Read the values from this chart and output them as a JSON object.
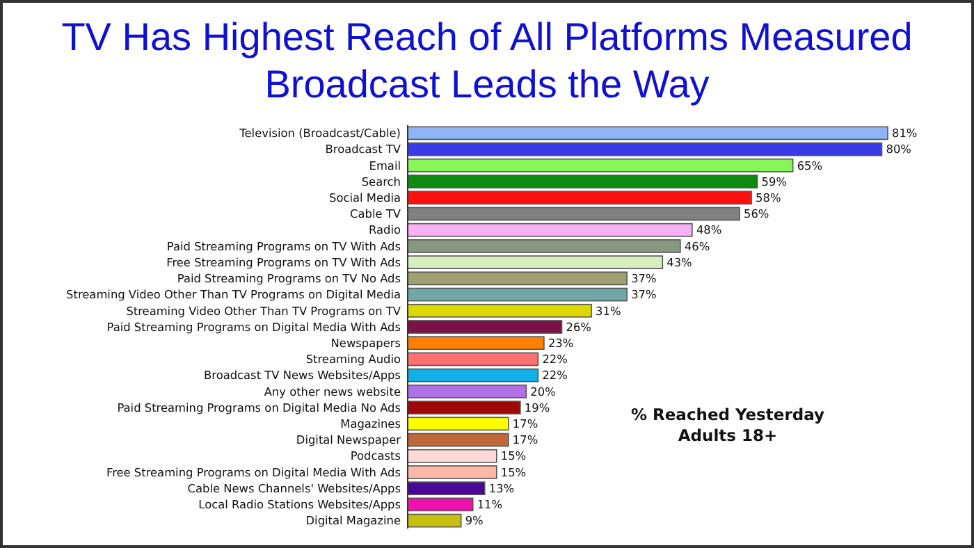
{
  "chart_data": {
    "type": "bar",
    "orientation": "horizontal",
    "title": "TV Has Highest Reach of All Platforms Measured\nBroadcast Leads the Way",
    "categories": [
      "Television (Broadcast/Cable)",
      "Broadcast TV",
      "Email",
      "Search",
      "Social Media",
      "Cable TV",
      "Radio",
      "Paid Streaming Programs on TV With Ads",
      "Free Streaming Programs on TV With Ads",
      "Paid Streaming Programs on TV No Ads",
      "Streaming Video Other Than TV Programs on Digital Media",
      "Streaming Video Other Than TV Programs on TV",
      "Paid Streaming Programs on Digital Media With Ads",
      "Newspapers",
      "Streaming Audio",
      "Broadcast TV News Websites/Apps",
      "Any other news website",
      "Paid Streaming Programs on Digital Media No Ads",
      "Magazines",
      "Digital Newspaper",
      "Podcasts",
      "Free Streaming Programs on Digital Media With Ads",
      "Cable News Channels' Websites/Apps",
      "Local Radio Stations Websites/Apps",
      "Digital Magazine"
    ],
    "values": [
      81,
      80,
      65,
      59,
      58,
      56,
      48,
      46,
      43,
      37,
      37,
      31,
      26,
      23,
      22,
      22,
      20,
      19,
      17,
      17,
      15,
      15,
      13,
      11,
      9
    ],
    "value_labels": [
      "81%",
      "80%",
      "65%",
      "59%",
      "58%",
      "56%",
      "48%",
      "46%",
      "43%",
      "37%",
      "37%",
      "31%",
      "26%",
      "23%",
      "22%",
      "22%",
      "20%",
      "19%",
      "17%",
      "17%",
      "15%",
      "15%",
      "13%",
      "11%",
      "9%"
    ],
    "colors": [
      "#8fb4f5",
      "#3a3ae8",
      "#88f55a",
      "#0e8a0e",
      "#ff1010",
      "#808080",
      "#f9b0f5",
      "#879880",
      "#d8f0c0",
      "#a0a070",
      "#70a8a8",
      "#dcd800",
      "#7a1248",
      "#ff8000",
      "#ff7070",
      "#10b0e8",
      "#b070e8",
      "#a00808",
      "#ffff00",
      "#c06838",
      "#ffd8d8",
      "#ffb8a8",
      "#4a0898",
      "#f010b0",
      "#c8c010"
    ],
    "annotations": [
      "% Reached Yesterday",
      "Adults 18+"
    ]
  }
}
